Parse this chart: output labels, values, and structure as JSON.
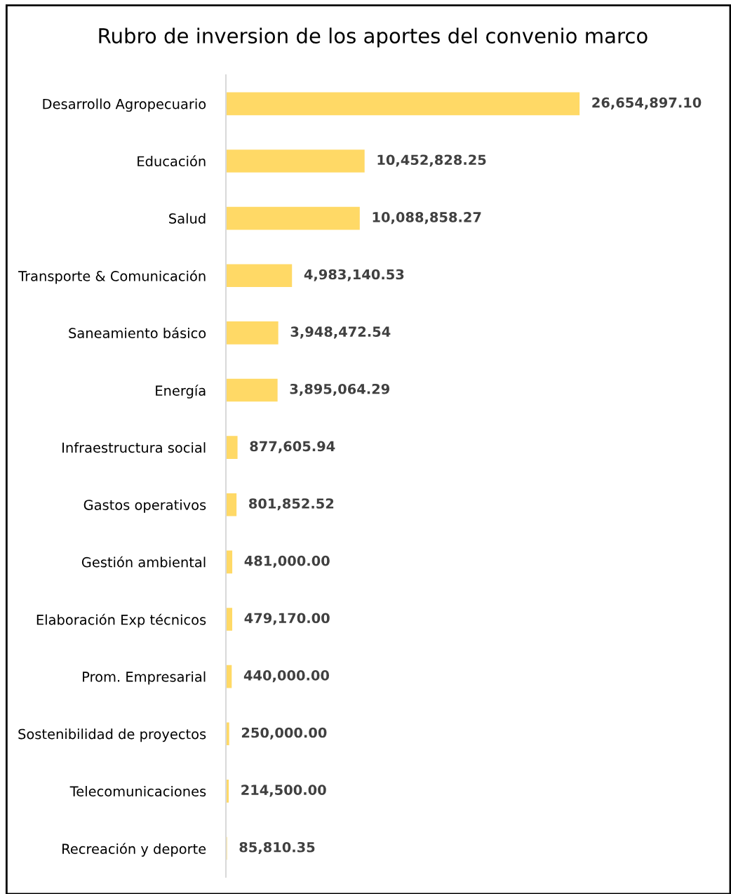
{
  "chart_data": {
    "type": "bar",
    "orientation": "horizontal",
    "title": "Rubro de inversion de los aportes del convenio marco",
    "categories": [
      "Desarrollo Agropecuario",
      "Educación",
      "Salud",
      "Transporte & Comunicación",
      "Saneamiento básico",
      "Energía",
      "Infraestructura social",
      "Gastos operativos",
      "Gestión ambiental",
      "Elaboración Exp técnicos",
      "Prom. Empresarial",
      "Sostenibilidad de proyectos",
      "Telecomunicaciones",
      "Recreación y deporte"
    ],
    "values": [
      26654897.1,
      10452828.25,
      10088858.27,
      4983140.53,
      3948472.54,
      3895064.29,
      877605.94,
      801852.52,
      481000.0,
      479170.0,
      440000.0,
      250000.0,
      214500.0,
      85810.35
    ],
    "value_labels": [
      "26,654,897.10",
      "10,452,828.25",
      "10,088,858.27",
      "4,983,140.53",
      "3,948,472.54",
      "3,895,064.29",
      "877,605.94",
      "801,852.52",
      "481,000.00",
      "479,170.00",
      "440,000.00",
      "250,000.00",
      "214,500.00",
      "85,810.35"
    ],
    "color": "#ffd966",
    "grid": false,
    "legend": false
  }
}
